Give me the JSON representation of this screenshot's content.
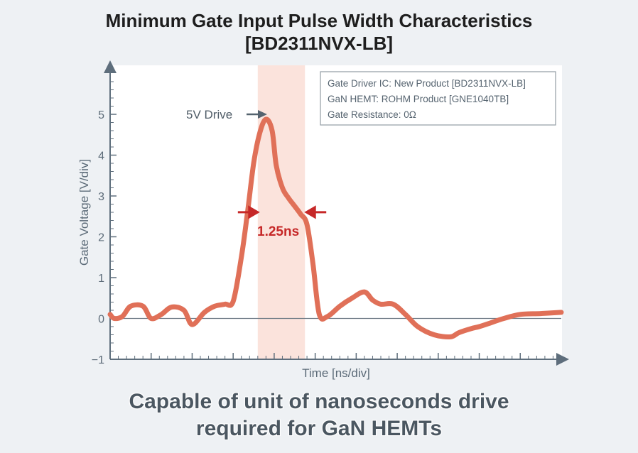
{
  "title_line1": "Minimum Gate Input Pulse Width Characteristics",
  "title_line2": "[BD2311NVX-LB]",
  "caption_line1": "Capable of unit of nanoseconds drive",
  "caption_line2": "required for GaN HEMTs",
  "info_box": [
    "Gate Driver IC: New Product [BD2311NVX-LB]",
    "GaN HEMT: ROHM  Product [GNE1040TB]",
    "Gate Resistance: 0Ω"
  ],
  "colors": {
    "trace": "#e07058",
    "highlight": "#fbe3dc",
    "arrow_red": "#c62828",
    "axis": "#5e6e7c"
  },
  "chart_data": {
    "type": "line",
    "xlabel": "Time [ns/div]",
    "ylabel": "Gate Voltage [V/div]",
    "ylim": [
      -1,
      6
    ],
    "xlim": [
      0,
      11
    ],
    "yticks": [
      "−1",
      "0",
      "1",
      "2",
      "3",
      "4",
      "5"
    ],
    "highlight_x": [
      3.6,
      4.75
    ],
    "annotations": {
      "peak_label": "5V Drive",
      "width_label": "1.25ns",
      "width_level": 2.55
    },
    "series": [
      {
        "name": "Gate Voltage",
        "x": [
          0,
          0.1,
          0.3,
          0.5,
          0.8,
          1.0,
          1.25,
          1.5,
          1.8,
          2.0,
          2.3,
          2.55,
          2.8,
          3.0,
          3.2,
          3.35,
          3.5,
          3.65,
          3.8,
          3.95,
          4.05,
          4.2,
          4.35,
          4.5,
          4.65,
          4.8,
          4.95,
          5.1,
          5.3,
          5.6,
          5.9,
          6.2,
          6.4,
          6.6,
          6.9,
          7.2,
          7.5,
          7.9,
          8.3,
          8.5,
          8.8,
          9.0,
          9.3,
          9.6,
          10.0,
          10.5,
          11.0
        ],
        "y": [
          0.1,
          0.0,
          0.05,
          0.3,
          0.3,
          0.0,
          0.1,
          0.28,
          0.2,
          -0.15,
          0.15,
          0.3,
          0.35,
          0.42,
          1.5,
          2.6,
          3.8,
          4.55,
          4.88,
          4.6,
          3.75,
          3.2,
          2.95,
          2.75,
          2.55,
          2.3,
          1.3,
          0.1,
          0.05,
          0.3,
          0.5,
          0.65,
          0.45,
          0.35,
          0.35,
          0.1,
          -0.2,
          -0.4,
          -0.45,
          -0.35,
          -0.25,
          -0.2,
          -0.1,
          0.0,
          0.1,
          0.12,
          0.15
        ]
      }
    ]
  }
}
